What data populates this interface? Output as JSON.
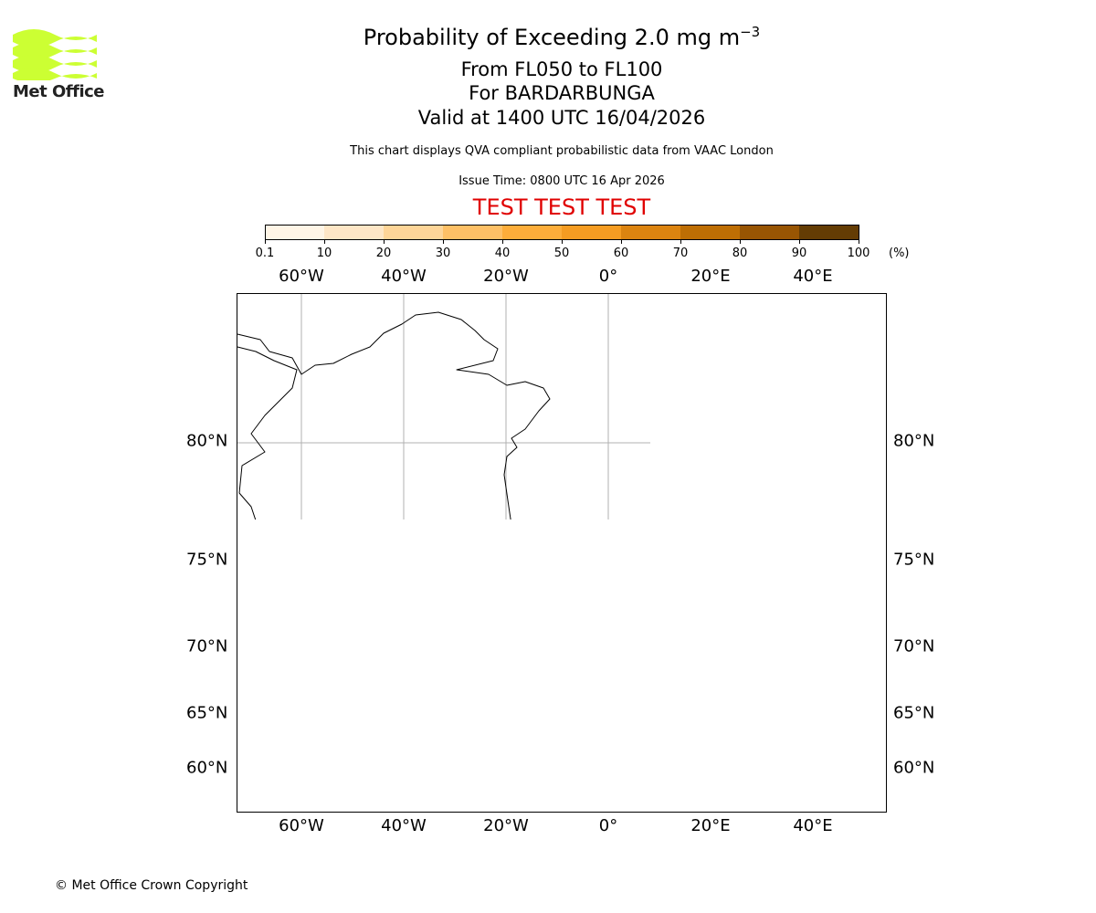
{
  "header": {
    "title": "Probability of Exceeding 2.0 mg m",
    "title_sup": "−3",
    "levels": "From FL050 to FL100",
    "volcano": "For BARDARBUNGA",
    "valid": "Valid at 1400 UTC 16/04/2026",
    "subtitle": "This chart displays QVA compliant probabilistic data from VAAC London",
    "issue": "Issue Time: 0800 UTC 16 Apr 2026",
    "test_banner": "TEST TEST TEST",
    "test_color": "#e00000"
  },
  "logo": {
    "text": "Met Office",
    "color": "#ccff33"
  },
  "colorbar": {
    "ticks": [
      "0.1",
      "10",
      "20",
      "30",
      "40",
      "50",
      "60",
      "70",
      "80",
      "90",
      "100"
    ],
    "unit": "(%)",
    "colors": [
      "#fff5e6",
      "#fee6c6",
      "#fed598",
      "#fec066",
      "#fdad3a",
      "#f59c22",
      "#dc8410",
      "#be6e04",
      "#985503",
      "#643c04"
    ]
  },
  "map": {
    "lon_labels": [
      "60°W",
      "40°W",
      "20°W",
      "0°",
      "20°E",
      "40°E"
    ],
    "lat_labels": [
      "80°N",
      "75°N",
      "70°N",
      "65°N",
      "60°N"
    ],
    "volcano_icon": "volcano-icon"
  },
  "footer": {
    "copyright": "© Met Office Crown Copyright"
  }
}
